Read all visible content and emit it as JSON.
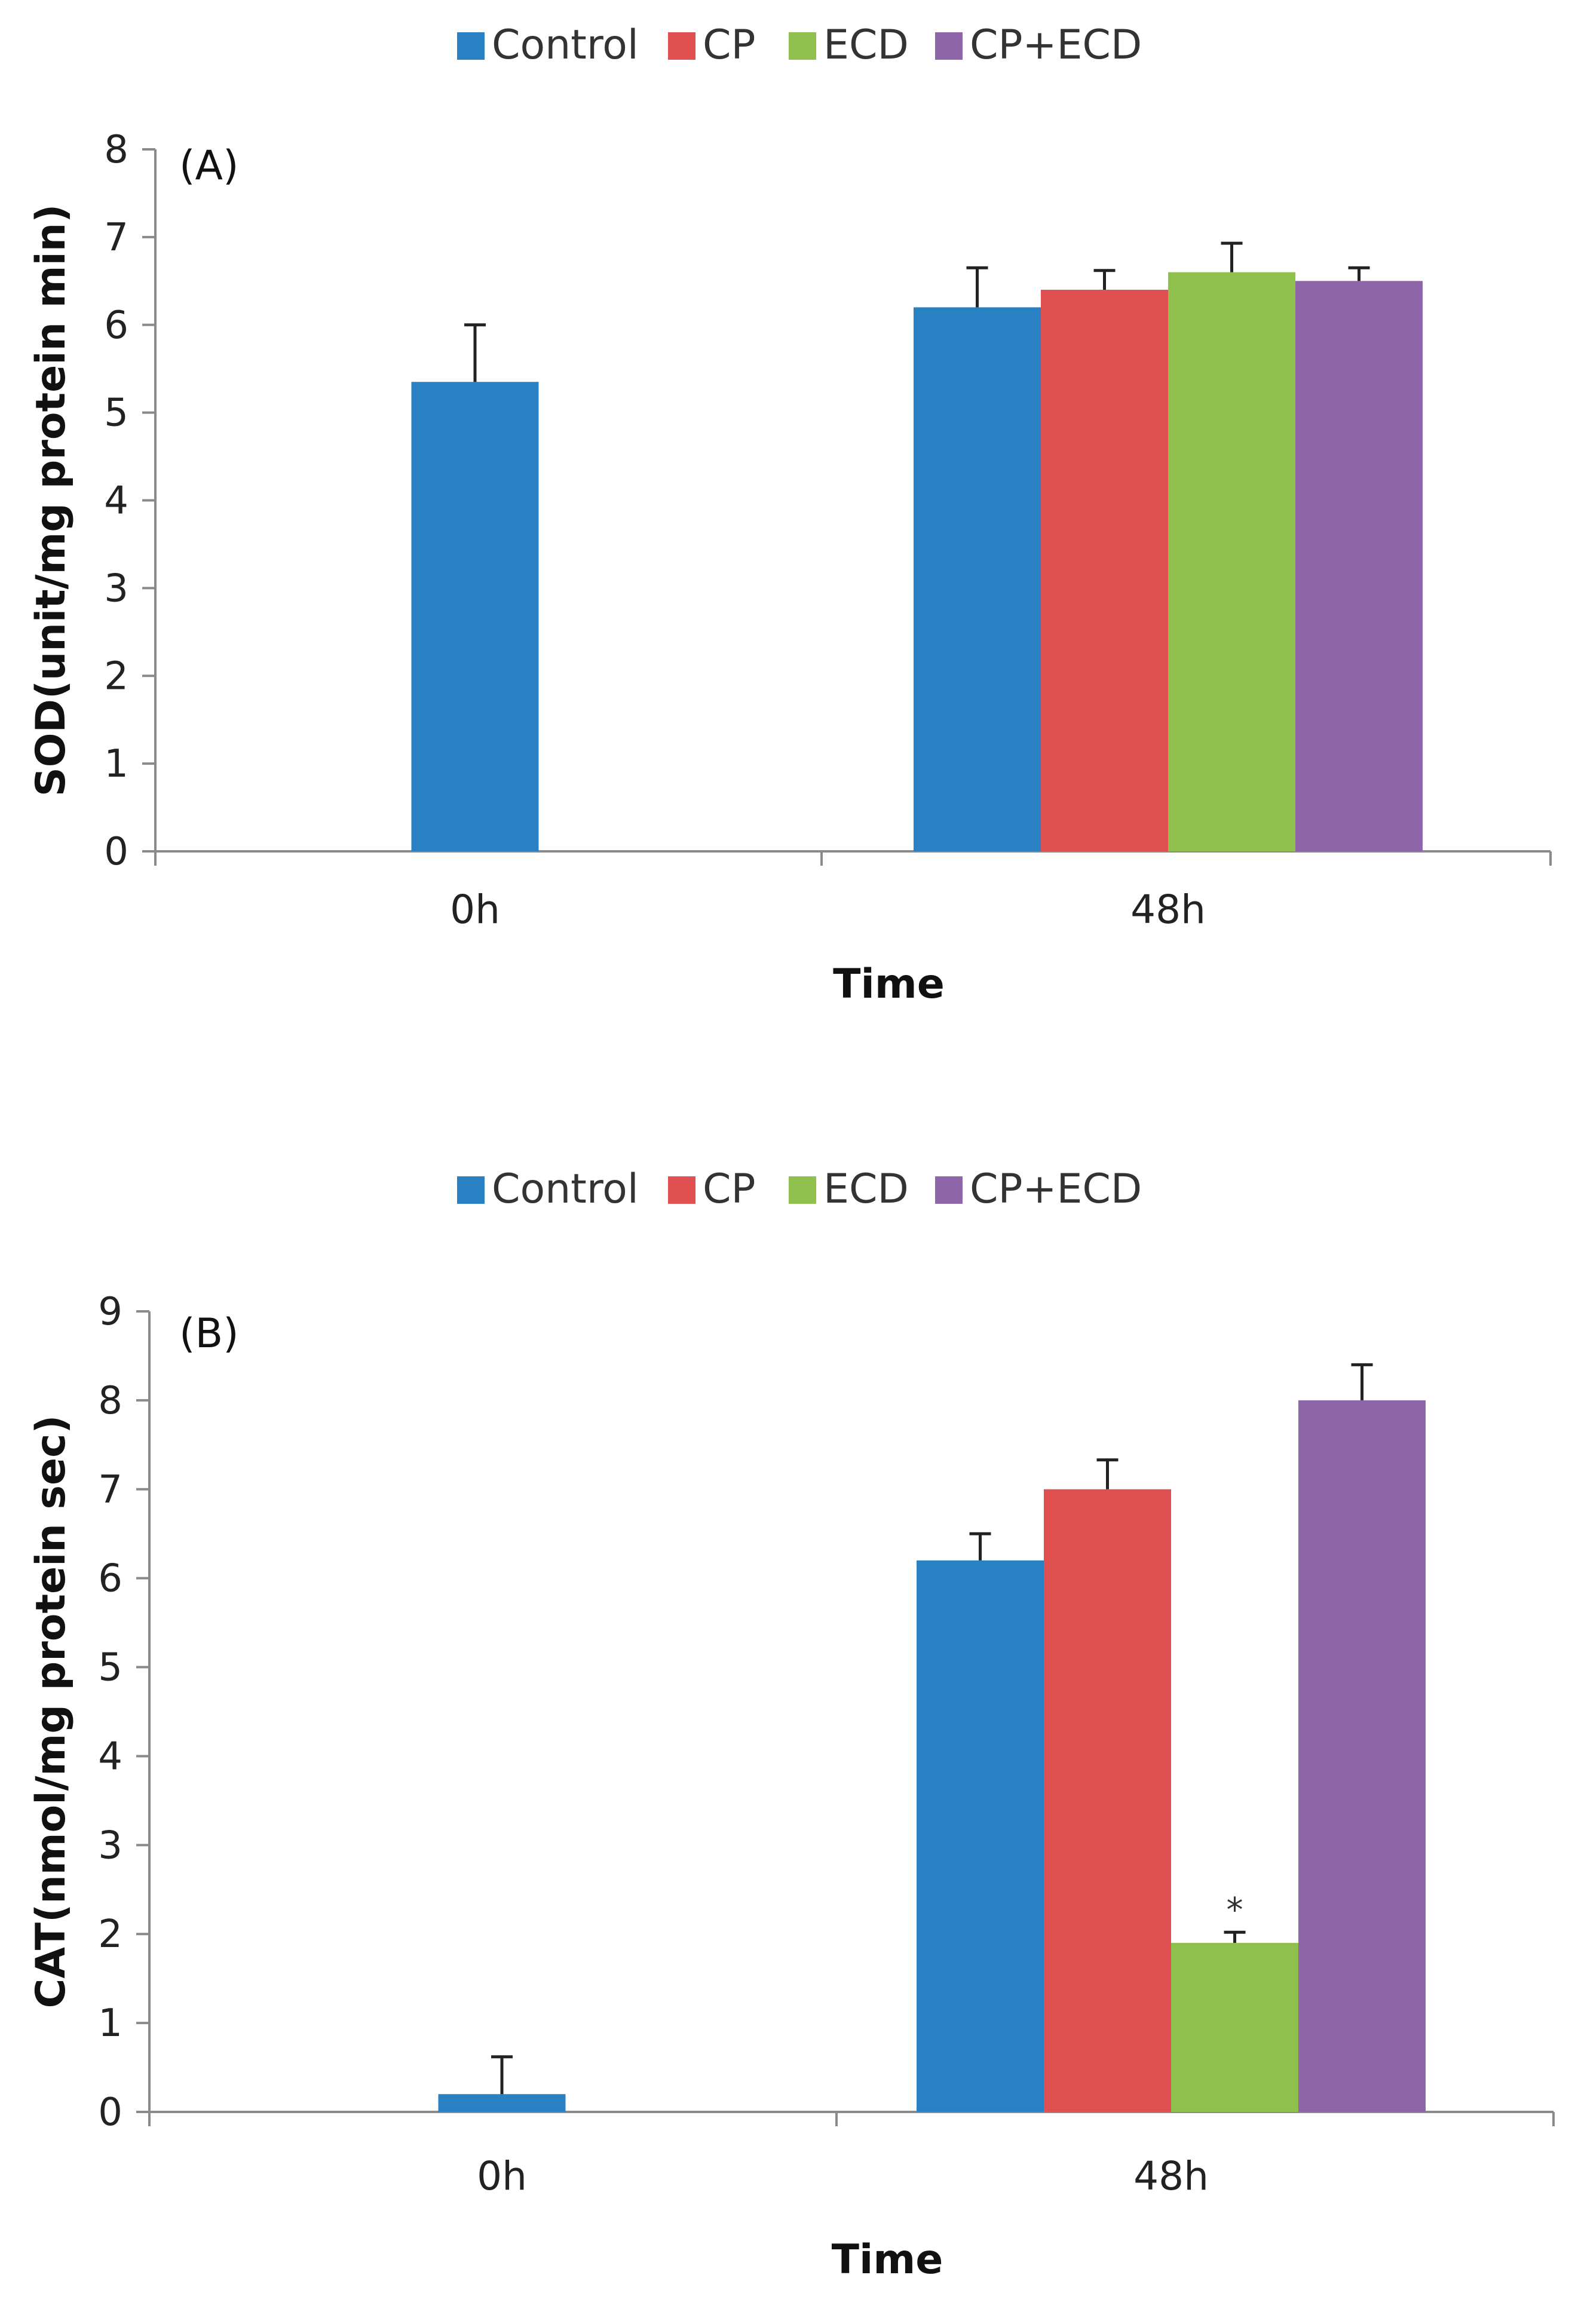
{
  "chart_data": [
    {
      "type": "bar",
      "panel_label": "(A)",
      "categories": [
        "0h",
        "48h"
      ],
      "series": [
        {
          "name": "Control",
          "values": [
            5.35,
            6.2
          ],
          "errors": [
            0.65,
            0.45
          ]
        },
        {
          "name": "CP",
          "values": [
            null,
            6.4
          ],
          "errors": [
            null,
            0.22
          ]
        },
        {
          "name": "ECD",
          "values": [
            null,
            6.6
          ],
          "errors": [
            null,
            0.33
          ]
        },
        {
          "name": "CP+ECD",
          "values": [
            null,
            6.5
          ],
          "errors": [
            null,
            0.15
          ]
        }
      ],
      "colors": [
        "#2980c2",
        "#e05050",
        "#8fbf4d",
        "#8d65a8"
      ],
      "xlabel": "Time",
      "ylabel": "SOD(unit/mg protein min)",
      "ylim": [
        0,
        8
      ],
      "yticks": [
        "0",
        "1",
        "2",
        "3",
        "4",
        "5",
        "6",
        "7",
        "8"
      ],
      "annotations": [],
      "legend_position": "top"
    },
    {
      "type": "bar",
      "panel_label": "(B)",
      "categories": [
        "0h",
        "48h"
      ],
      "series": [
        {
          "name": "Control",
          "values": [
            0.2,
            6.2
          ],
          "errors": [
            0.42,
            0.3
          ]
        },
        {
          "name": "CP",
          "values": [
            null,
            7.0
          ],
          "errors": [
            null,
            0.33
          ]
        },
        {
          "name": "ECD",
          "values": [
            null,
            1.9
          ],
          "errors": [
            null,
            0.12
          ]
        },
        {
          "name": "CP+ECD",
          "values": [
            null,
            8.0
          ],
          "errors": [
            null,
            0.4
          ]
        }
      ],
      "colors": [
        "#2980c2",
        "#e05050",
        "#8fbf4d",
        "#8d65a8"
      ],
      "xlabel": "Time",
      "ylabel": "CAT(nmol/mg protein sec)",
      "ylim": [
        0,
        9
      ],
      "yticks": [
        "0",
        "1",
        "2",
        "3",
        "4",
        "5",
        "6",
        "7",
        "8",
        "9"
      ],
      "annotations": [
        {
          "series": "ECD",
          "category": "48h",
          "text": "*"
        }
      ],
      "legend_position": "top"
    }
  ]
}
